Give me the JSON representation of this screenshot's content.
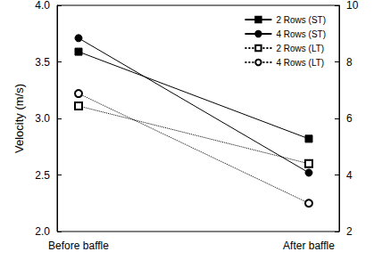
{
  "chart_data": {
    "type": "line",
    "categories": [
      "Before baffle",
      "After baffle"
    ],
    "y_label": "Velocity (m/s)",
    "ylim": [
      2,
      4
    ],
    "yticks": [
      {
        "value": 2,
        "label": "2.0"
      },
      {
        "value": 2.5,
        "label": "2.5"
      },
      {
        "value": 3,
        "label": "3.0"
      },
      {
        "value": 3.5,
        "label": "3.5"
      },
      {
        "value": 4,
        "label": "4.0"
      }
    ],
    "y2lim": [
      2,
      10
    ],
    "y2ticks": [
      2,
      4,
      6,
      8,
      10
    ],
    "grid": false,
    "legend": "upper right",
    "series": [
      {
        "name": "2 Rows (ST)",
        "color": "#000000",
        "marker": "square",
        "line_style": "solid",
        "axis": "y2",
        "values": [
          8.36,
          5.28
        ]
      },
      {
        "name": "4 Rows (ST)",
        "color": "#000000",
        "marker": "circle",
        "line_style": "solid",
        "axis": "y2",
        "values": [
          8.84,
          4.08
        ]
      },
      {
        "name": "2 Rows (LT)",
        "color": "#000000",
        "marker": "open-square",
        "line_style": "dotted",
        "values": [
          3.11,
          2.6
        ]
      },
      {
        "name": "4 Rows (LT)",
        "color": "#000000",
        "marker": "open-circle",
        "line_style": "dotted",
        "values": [
          3.22,
          2.25
        ]
      }
    ]
  }
}
